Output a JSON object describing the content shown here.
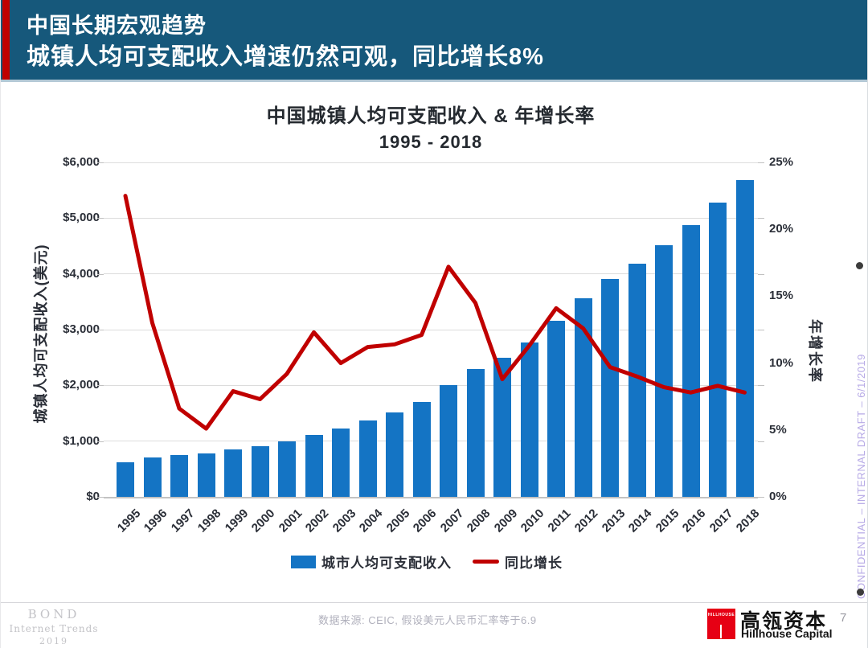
{
  "header": {
    "title_line1": "中国长期宏观趋势",
    "title_line2": "城镇人均可支配收入增速仍然可观，同比增长8%",
    "bg_color": "#16587b",
    "accent_color": "#c00000"
  },
  "chart": {
    "title_line1": "中国城镇人均可支配收入 & 年增长率",
    "title_line2": "1995 - 2018",
    "left_axis_title": "城镇人均可支配收入(美元)",
    "right_axis_title": "年增长率",
    "left_ticks": [
      "$6,000",
      "$5,000",
      "$4,000",
      "$3,000",
      "$2,000",
      "$1,000",
      "$0"
    ],
    "right_ticks": [
      "25%",
      "20%",
      "15%",
      "10%",
      "5%",
      "0%"
    ],
    "legend": [
      {
        "label": "城市人均可支配收入",
        "color": "#1474c4",
        "type": "bar"
      },
      {
        "label": "同比增长",
        "color": "#c00000",
        "type": "line"
      }
    ]
  },
  "chart_data": {
    "type": "bar",
    "title": "中国城镇人均可支配收入 & 年增长率",
    "subtitle": "1995 - 2018",
    "categories": [
      "1995",
      "1996",
      "1997",
      "1998",
      "1999",
      "2000",
      "2001",
      "2002",
      "2003",
      "2004",
      "2005",
      "2006",
      "2007",
      "2008",
      "2009",
      "2010",
      "2011",
      "2012",
      "2013",
      "2014",
      "2015",
      "2016",
      "2017",
      "2018"
    ],
    "series": [
      {
        "name": "城市人均可支配收入",
        "type": "bar",
        "axis": "left",
        "color": "#1474c4",
        "values": [
          620,
          700,
          748,
          786,
          848,
          910,
          994,
          1116,
          1228,
          1366,
          1521,
          1704,
          1998,
          2287,
          2489,
          2770,
          3161,
          3560,
          3907,
          4180,
          4521,
          4872,
          5275,
          5689
        ]
      },
      {
        "name": "同比增长",
        "type": "line",
        "axis": "right",
        "color": "#c00000",
        "values": [
          22.5,
          13.0,
          6.6,
          5.1,
          7.9,
          7.3,
          9.2,
          12.3,
          10.0,
          11.2,
          11.4,
          12.1,
          17.2,
          14.5,
          8.8,
          11.3,
          14.1,
          12.6,
          9.7,
          9.0,
          8.2,
          7.8,
          8.3,
          7.8
        ]
      }
    ],
    "left_axis": {
      "label": "城镇人均可支配收入(美元)",
      "min": 0,
      "max": 6000,
      "step": 1000,
      "format": "$"
    },
    "right_axis": {
      "label": "年增长率",
      "min": 0,
      "max": 25,
      "step": 5,
      "format": "%"
    },
    "grid": true,
    "legend_position": "bottom"
  },
  "footer": {
    "source": "数据来源: CEIC, 假设美元人民币汇率等于6.9",
    "bond_logo": {
      "line1": "BOND",
      "line2": "Internet Trends",
      "line3": "2019"
    },
    "hillhouse": {
      "logo_text": "HILLHOUSE",
      "name_cn": "高瓴资本",
      "name_en": "Hillhouse Capital"
    },
    "page_number": "7"
  },
  "side_note": {
    "text": "CONFIDENTIAL – INTERNAL DRAFT – 6/1/2019",
    "color": "#b6a9e6"
  }
}
